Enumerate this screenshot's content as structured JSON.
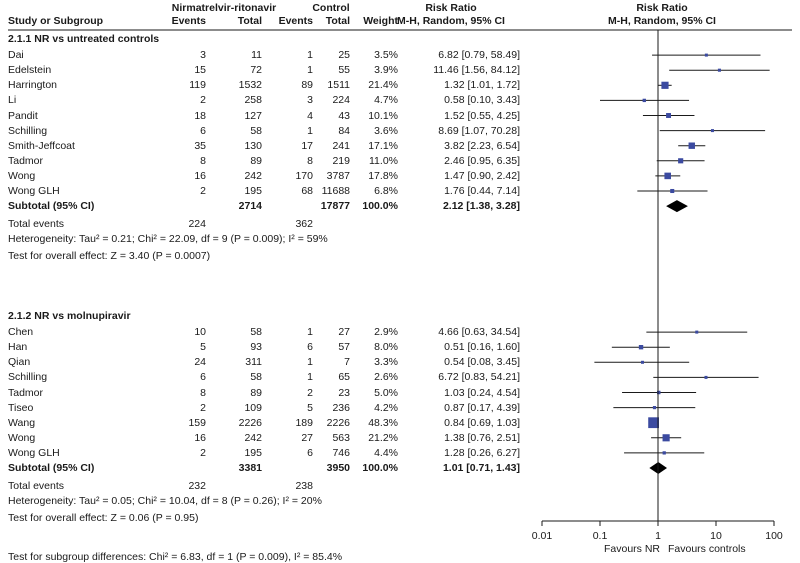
{
  "header": {
    "study_col": "Study or Subgroup",
    "exp_group": "Nirmatrelvir-ritonavir",
    "ctl_group": "Control",
    "events": "Events",
    "total": "Total",
    "weight": "Weight",
    "rr_title": "Risk Ratio",
    "rr_method": "M-H, Random, 95% CI"
  },
  "groups": [
    {
      "title": "2.1.1 NR vs untreated controls",
      "subtotal_label": "Subtotal (95% CI)",
      "subtotal_exp_total": "2714",
      "subtotal_ctl_total": "17877",
      "subtotal_weight": "100.0%",
      "subtotal_ci": "2.12 [1.38, 3.28]",
      "total_events_label": "Total events",
      "total_events_exp": "224",
      "total_events_ctl": "362",
      "heterogeneity": "Heterogeneity: Tau² = 0.21; Chi² = 22.09, df = 9 (P = 0.009); I² = 59%",
      "overall": "Test for overall effect: Z = 3.40 (P = 0.0007)",
      "studies": [
        {
          "name": "Dai",
          "exp_events": "3",
          "exp_total": "11",
          "ctl_events": "1",
          "ctl_total": "25",
          "weight": "3.5%",
          "ci_text": "6.82 [0.79, 58.49]"
        },
        {
          "name": "Edelstein",
          "exp_events": "15",
          "exp_total": "72",
          "ctl_events": "1",
          "ctl_total": "55",
          "weight": "3.9%",
          "ci_text": "11.46 [1.56, 84.12]"
        },
        {
          "name": "Harrington",
          "exp_events": "119",
          "exp_total": "1532",
          "ctl_events": "89",
          "ctl_total": "1511",
          "weight": "21.4%",
          "ci_text": "1.32 [1.01, 1.72]"
        },
        {
          "name": "Li",
          "exp_events": "2",
          "exp_total": "258",
          "ctl_events": "3",
          "ctl_total": "224",
          "weight": "4.7%",
          "ci_text": "0.58 [0.10, 3.43]"
        },
        {
          "name": "Pandit",
          "exp_events": "18",
          "exp_total": "127",
          "ctl_events": "4",
          "ctl_total": "43",
          "weight": "10.1%",
          "ci_text": "1.52 [0.55, 4.25]"
        },
        {
          "name": "Schilling",
          "exp_events": "6",
          "exp_total": "58",
          "ctl_events": "1",
          "ctl_total": "84",
          "weight": "3.6%",
          "ci_text": "8.69 [1.07, 70.28]"
        },
        {
          "name": "Smith-Jeffcoat",
          "exp_events": "35",
          "exp_total": "130",
          "ctl_events": "17",
          "ctl_total": "241",
          "weight": "17.1%",
          "ci_text": "3.82 [2.23, 6.54]"
        },
        {
          "name": "Tadmor",
          "exp_events": "8",
          "exp_total": "89",
          "ctl_events": "8",
          "ctl_total": "219",
          "weight": "11.0%",
          "ci_text": "2.46 [0.95, 6.35]"
        },
        {
          "name": "Wong",
          "exp_events": "16",
          "exp_total": "242",
          "ctl_events": "170",
          "ctl_total": "3787",
          "weight": "17.8%",
          "ci_text": "1.47 [0.90, 2.42]"
        },
        {
          "name": "Wong GLH",
          "exp_events": "2",
          "exp_total": "195",
          "ctl_events": "68",
          "ctl_total": "11688",
          "weight": "6.8%",
          "ci_text": "1.76 [0.44, 7.14]"
        }
      ]
    },
    {
      "title": "2.1.2 NR vs molnupiravir",
      "subtotal_label": "Subtotal (95% CI)",
      "subtotal_exp_total": "3381",
      "subtotal_ctl_total": "3950",
      "subtotal_weight": "100.0%",
      "subtotal_ci": "1.01 [0.71, 1.43]",
      "total_events_label": "Total events",
      "total_events_exp": "232",
      "total_events_ctl": "238",
      "heterogeneity": "Heterogeneity: Tau² = 0.05; Chi² = 10.04, df = 8 (P = 0.26); I² = 20%",
      "overall": "Test for overall effect: Z = 0.06 (P = 0.95)",
      "studies": [
        {
          "name": "Chen",
          "exp_events": "10",
          "exp_total": "58",
          "ctl_events": "1",
          "ctl_total": "27",
          "weight": "2.9%",
          "ci_text": "4.66 [0.63, 34.54]"
        },
        {
          "name": "Han",
          "exp_events": "5",
          "exp_total": "93",
          "ctl_events": "6",
          "ctl_total": "57",
          "weight": "8.0%",
          "ci_text": "0.51 [0.16, 1.60]"
        },
        {
          "name": "Qian",
          "exp_events": "24",
          "exp_total": "311",
          "ctl_events": "1",
          "ctl_total": "7",
          "weight": "3.3%",
          "ci_text": "0.54 [0.08, 3.45]"
        },
        {
          "name": "Schilling",
          "exp_events": "6",
          "exp_total": "58",
          "ctl_events": "1",
          "ctl_total": "65",
          "weight": "2.6%",
          "ci_text": "6.72 [0.83, 54.21]"
        },
        {
          "name": "Tadmor",
          "exp_events": "8",
          "exp_total": "89",
          "ctl_events": "2",
          "ctl_total": "23",
          "weight": "5.0%",
          "ci_text": "1.03 [0.24, 4.54]"
        },
        {
          "name": "Tiseo",
          "exp_events": "2",
          "exp_total": "109",
          "ctl_events": "5",
          "ctl_total": "236",
          "weight": "4.2%",
          "ci_text": "0.87 [0.17, 4.39]"
        },
        {
          "name": "Wang",
          "exp_events": "159",
          "exp_total": "2226",
          "ctl_events": "189",
          "ctl_total": "2226",
          "weight": "48.3%",
          "ci_text": "0.84 [0.69, 1.03]"
        },
        {
          "name": "Wong",
          "exp_events": "16",
          "exp_total": "242",
          "ctl_events": "27",
          "ctl_total": "563",
          "weight": "21.2%",
          "ci_text": "1.38 [0.76, 2.51]"
        },
        {
          "name": "Wong GLH",
          "exp_events": "2",
          "exp_total": "195",
          "ctl_events": "6",
          "ctl_total": "746",
          "weight": "4.4%",
          "ci_text": "1.28 [0.26, 6.27]"
        }
      ]
    }
  ],
  "footer": "Test for subgroup differences: Chi² = 6.83, df = 1 (P = 0.009), I² = 85.4%",
  "axis": {
    "tick_labels": [
      "0.01",
      "0.1",
      "1",
      "10",
      "100"
    ],
    "favours_left": "Favours NR",
    "favours_right": "Favours controls"
  },
  "colors": {
    "marker": "#3b4aa0",
    "line": "#1a1a1a",
    "diamond": "#000000"
  },
  "chart_data": {
    "type": "forest",
    "title": "Risk Ratio",
    "xlabel": "M-H, Random, 95% CI",
    "xscale": "log",
    "xlim": [
      0.01,
      100
    ],
    "xticks": [
      0.01,
      0.1,
      1,
      10,
      100
    ],
    "reference_line": 1,
    "series": [
      {
        "name": "2.1.1 NR vs untreated controls",
        "studies": [
          {
            "name": "Dai",
            "rr": 6.82,
            "lo": 0.79,
            "hi": 58.49,
            "weight": 3.5
          },
          {
            "name": "Edelstein",
            "rr": 11.46,
            "lo": 1.56,
            "hi": 84.12,
            "weight": 3.9
          },
          {
            "name": "Harrington",
            "rr": 1.32,
            "lo": 1.01,
            "hi": 1.72,
            "weight": 21.4
          },
          {
            "name": "Li",
            "rr": 0.58,
            "lo": 0.1,
            "hi": 3.43,
            "weight": 4.7
          },
          {
            "name": "Pandit",
            "rr": 1.52,
            "lo": 0.55,
            "hi": 4.25,
            "weight": 10.1
          },
          {
            "name": "Schilling",
            "rr": 8.69,
            "lo": 1.07,
            "hi": 70.28,
            "weight": 3.6
          },
          {
            "name": "Smith-Jeffcoat",
            "rr": 3.82,
            "lo": 2.23,
            "hi": 6.54,
            "weight": 17.1
          },
          {
            "name": "Tadmor",
            "rr": 2.46,
            "lo": 0.95,
            "hi": 6.35,
            "weight": 11.0
          },
          {
            "name": "Wong",
            "rr": 1.47,
            "lo": 0.9,
            "hi": 2.42,
            "weight": 17.8
          },
          {
            "name": "Wong GLH",
            "rr": 1.76,
            "lo": 0.44,
            "hi": 7.14,
            "weight": 6.8
          }
        ],
        "pooled": {
          "rr": 2.12,
          "lo": 1.38,
          "hi": 3.28
        }
      },
      {
        "name": "2.1.2 NR vs molnupiravir",
        "studies": [
          {
            "name": "Chen",
            "rr": 4.66,
            "lo": 0.63,
            "hi": 34.54,
            "weight": 2.9
          },
          {
            "name": "Han",
            "rr": 0.51,
            "lo": 0.16,
            "hi": 1.6,
            "weight": 8.0
          },
          {
            "name": "Qian",
            "rr": 0.54,
            "lo": 0.08,
            "hi": 3.45,
            "weight": 3.3
          },
          {
            "name": "Schilling",
            "rr": 6.72,
            "lo": 0.83,
            "hi": 54.21,
            "weight": 2.6
          },
          {
            "name": "Tadmor",
            "rr": 1.03,
            "lo": 0.24,
            "hi": 4.54,
            "weight": 5.0
          },
          {
            "name": "Tiseo",
            "rr": 0.87,
            "lo": 0.17,
            "hi": 4.39,
            "weight": 4.2
          },
          {
            "name": "Wang",
            "rr": 0.84,
            "lo": 0.69,
            "hi": 1.03,
            "weight": 48.3
          },
          {
            "name": "Wong",
            "rr": 1.38,
            "lo": 0.76,
            "hi": 2.51,
            "weight": 21.2
          },
          {
            "name": "Wong GLH",
            "rr": 1.28,
            "lo": 0.26,
            "hi": 6.27,
            "weight": 4.4
          }
        ],
        "pooled": {
          "rr": 1.01,
          "lo": 0.71,
          "hi": 1.43
        }
      }
    ]
  }
}
